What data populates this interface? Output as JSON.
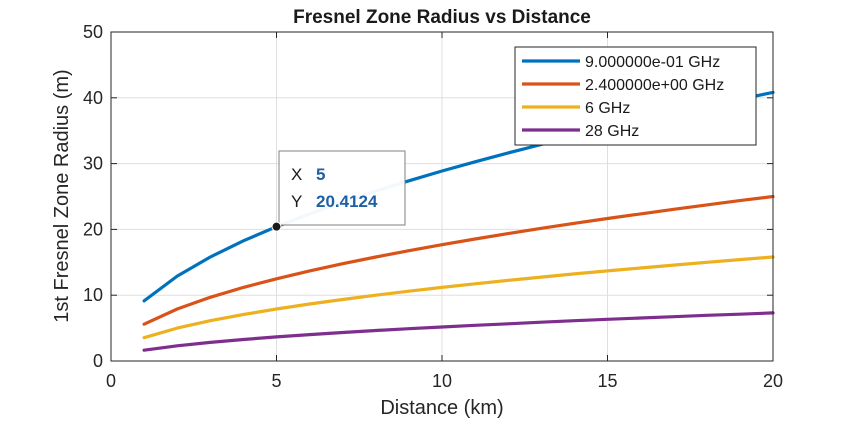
{
  "chart_data": {
    "type": "line",
    "title": "Fresnel Zone Radius vs Distance",
    "xlabel": "Distance (km)",
    "ylabel": "1st Fresnel Zone Radius (m)",
    "xlim": [
      0,
      20
    ],
    "ylim": [
      0,
      50
    ],
    "xticks": [
      0,
      5,
      10,
      15,
      20
    ],
    "yticks": [
      0,
      10,
      20,
      30,
      40,
      50
    ],
    "grid": true,
    "legend_position": "top-right",
    "x": [
      1,
      2,
      3,
      4,
      5,
      6,
      7,
      8,
      9,
      10,
      11,
      12,
      13,
      14,
      15,
      16,
      17,
      18,
      19,
      20
    ],
    "series": [
      {
        "name": "9.000000e-01 GHz",
        "color": "#0072BD",
        "values": [
          9.13,
          12.91,
          15.81,
          18.26,
          20.41,
          22.36,
          24.15,
          25.82,
          27.39,
          28.87,
          30.28,
          31.62,
          32.91,
          34.16,
          35.36,
          36.51,
          37.64,
          38.73,
          39.79,
          40.82
        ]
      },
      {
        "name": "2.400000e+00 GHz",
        "color": "#D95319",
        "values": [
          5.59,
          7.91,
          9.68,
          11.18,
          12.5,
          13.69,
          14.79,
          15.81,
          16.77,
          17.68,
          18.54,
          19.36,
          20.16,
          20.92,
          21.65,
          22.36,
          23.05,
          23.72,
          24.37,
          25.0
        ]
      },
      {
        "name": "6 GHz",
        "color": "#EDB120",
        "values": [
          3.54,
          5.0,
          6.12,
          7.07,
          7.91,
          8.66,
          9.35,
          10.0,
          10.61,
          11.18,
          11.73,
          12.25,
          12.75,
          13.23,
          13.69,
          14.14,
          14.58,
          15.0,
          15.41,
          15.81
        ]
      },
      {
        "name": "28 GHz",
        "color": "#7E2F8E",
        "values": [
          1.64,
          2.31,
          2.83,
          3.27,
          3.66,
          4.01,
          4.33,
          4.63,
          4.91,
          5.17,
          5.42,
          5.66,
          5.89,
          6.12,
          6.33,
          6.54,
          6.74,
          6.94,
          7.12,
          7.31
        ]
      }
    ],
    "datatip": {
      "series_index": 0,
      "x_key": "X",
      "y_key": "Y",
      "x_value": "5",
      "y_value": "20.4124",
      "x": 5,
      "y": 20.4124
    }
  }
}
